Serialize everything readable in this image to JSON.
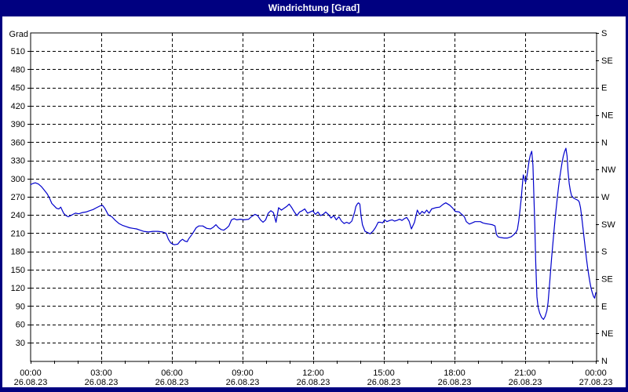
{
  "window": {
    "title": "Windrichtung [Grad]"
  },
  "colors": {
    "titlebar_bg": "#000080",
    "border": "#000080",
    "plot_bg": "#ffffff",
    "line": "#0000cc",
    "grid": "#000000",
    "text": "#000000"
  },
  "chart_data": {
    "type": "line",
    "title": "Windrichtung [Grad]",
    "ylabel": "Grad",
    "ylim": [
      0,
      540
    ],
    "xlim_hours": [
      0,
      24
    ],
    "grid": true,
    "legend_position": "none",
    "y_ticks_left": [
      30,
      60,
      90,
      120,
      150,
      180,
      210,
      240,
      270,
      300,
      330,
      360,
      390,
      420,
      450,
      480,
      510
    ],
    "y_ticks_right": [
      {
        "value": 540,
        "label": "S"
      },
      {
        "value": 495,
        "label": "SE"
      },
      {
        "value": 450,
        "label": "E"
      },
      {
        "value": 405,
        "label": "NE"
      },
      {
        "value": 360,
        "label": "N"
      },
      {
        "value": 315,
        "label": "NW"
      },
      {
        "value": 270,
        "label": "W"
      },
      {
        "value": 225,
        "label": "SW"
      },
      {
        "value": 180,
        "label": "S"
      },
      {
        "value": 135,
        "label": "SE"
      },
      {
        "value": 90,
        "label": "E"
      },
      {
        "value": 45,
        "label": "NE"
      },
      {
        "value": 0,
        "label": "N"
      }
    ],
    "x_ticks": [
      {
        "hours": 0,
        "time": "00:00",
        "date": "26.08.23"
      },
      {
        "hours": 3,
        "time": "03:00",
        "date": "26.08.23"
      },
      {
        "hours": 6,
        "time": "06:00",
        "date": "26.08.23"
      },
      {
        "hours": 9,
        "time": "09:00",
        "date": "26.08.23"
      },
      {
        "hours": 12,
        "time": "12:00",
        "date": "26.08.23"
      },
      {
        "hours": 15,
        "time": "15:00",
        "date": "26.08.23"
      },
      {
        "hours": 18,
        "time": "18:00",
        "date": "26.08.23"
      },
      {
        "hours": 21,
        "time": "21:00",
        "date": "26.08.23"
      },
      {
        "hours": 24,
        "time": "00:00",
        "date": "27.08.23"
      }
    ],
    "x_minor_tick_hours": 1,
    "series": [
      {
        "name": "Windrichtung",
        "unit": "Grad",
        "color": "#0000cc",
        "points": [
          [
            0,
            290
          ],
          [
            0.1,
            292
          ],
          [
            0.2,
            293
          ],
          [
            0.33,
            291
          ],
          [
            0.45,
            287
          ],
          [
            0.58,
            281
          ],
          [
            0.7,
            275
          ],
          [
            0.8,
            268
          ],
          [
            0.9,
            259
          ],
          [
            1.0,
            255
          ],
          [
            1.1,
            251
          ],
          [
            1.2,
            250
          ],
          [
            1.28,
            253
          ],
          [
            1.4,
            243
          ],
          [
            1.5,
            239
          ],
          [
            1.6,
            237
          ],
          [
            1.7,
            239
          ],
          [
            1.8,
            241
          ],
          [
            1.9,
            243
          ],
          [
            2.05,
            242
          ],
          [
            2.2,
            244
          ],
          [
            2.35,
            245
          ],
          [
            2.5,
            247
          ],
          [
            2.65,
            249
          ],
          [
            2.8,
            252
          ],
          [
            2.95,
            255
          ],
          [
            3.05,
            256
          ],
          [
            3.15,
            251
          ],
          [
            3.3,
            240
          ],
          [
            3.45,
            237
          ],
          [
            3.6,
            231
          ],
          [
            3.75,
            226
          ],
          [
            3.9,
            223
          ],
          [
            4.05,
            221
          ],
          [
            4.2,
            219
          ],
          [
            4.35,
            218
          ],
          [
            4.5,
            217
          ],
          [
            4.65,
            215
          ],
          [
            4.8,
            213
          ],
          [
            5.0,
            212
          ],
          [
            5.2,
            213
          ],
          [
            5.4,
            213
          ],
          [
            5.6,
            212
          ],
          [
            5.75,
            210
          ],
          [
            5.85,
            200
          ],
          [
            5.95,
            194
          ],
          [
            6.1,
            191
          ],
          [
            6.25,
            192
          ],
          [
            6.35,
            197
          ],
          [
            6.45,
            200
          ],
          [
            6.55,
            197
          ],
          [
            6.65,
            196
          ],
          [
            6.7,
            200
          ],
          [
            6.87,
            209
          ],
          [
            7.03,
            219
          ],
          [
            7.14,
            222
          ],
          [
            7.31,
            222
          ],
          [
            7.48,
            218
          ],
          [
            7.64,
            217
          ],
          [
            7.76,
            220
          ],
          [
            7.87,
            224
          ],
          [
            7.98,
            219
          ],
          [
            8.09,
            216
          ],
          [
            8.2,
            215
          ],
          [
            8.31,
            218
          ],
          [
            8.42,
            222
          ],
          [
            8.53,
            232
          ],
          [
            8.64,
            234
          ],
          [
            8.76,
            232
          ],
          [
            8.9,
            233
          ],
          [
            9.05,
            232
          ],
          [
            9.26,
            233
          ],
          [
            9.37,
            237
          ],
          [
            9.53,
            241
          ],
          [
            9.64,
            239
          ],
          [
            9.76,
            232
          ],
          [
            9.87,
            228
          ],
          [
            9.98,
            232
          ],
          [
            10.09,
            243
          ],
          [
            10.2,
            247
          ],
          [
            10.31,
            244
          ],
          [
            10.42,
            228
          ],
          [
            10.53,
            252
          ],
          [
            10.65,
            248
          ],
          [
            10.87,
            254
          ],
          [
            10.98,
            258
          ],
          [
            11.09,
            252
          ],
          [
            11.2,
            245
          ],
          [
            11.31,
            239
          ],
          [
            11.42,
            245
          ],
          [
            11.53,
            247
          ],
          [
            11.64,
            250
          ],
          [
            11.76,
            243
          ],
          [
            11.87,
            245
          ],
          [
            11.98,
            247
          ],
          [
            12.09,
            241
          ],
          [
            12.2,
            245
          ],
          [
            12.31,
            239
          ],
          [
            12.42,
            241
          ],
          [
            12.53,
            245
          ],
          [
            12.64,
            241
          ],
          [
            12.76,
            235
          ],
          [
            12.87,
            239
          ],
          [
            12.98,
            232
          ],
          [
            13.09,
            237
          ],
          [
            13.2,
            230
          ],
          [
            13.31,
            226
          ],
          [
            13.42,
            228
          ],
          [
            13.53,
            226
          ],
          [
            13.64,
            230
          ],
          [
            13.76,
            245
          ],
          [
            13.81,
            254
          ],
          [
            13.87,
            258
          ],
          [
            13.92,
            260
          ],
          [
            13.98,
            258
          ],
          [
            14.03,
            239
          ],
          [
            14.09,
            224
          ],
          [
            14.2,
            213
          ],
          [
            14.31,
            211
          ],
          [
            14.42,
            209
          ],
          [
            14.53,
            213
          ],
          [
            14.64,
            219
          ],
          [
            14.76,
            228
          ],
          [
            14.85,
            228
          ],
          [
            14.95,
            227
          ],
          [
            15.03,
            232
          ],
          [
            15.13,
            229
          ],
          [
            15.25,
            231
          ],
          [
            15.35,
            232
          ],
          [
            15.45,
            230
          ],
          [
            15.55,
            231
          ],
          [
            15.67,
            233
          ],
          [
            15.77,
            231
          ],
          [
            15.87,
            234
          ],
          [
            15.97,
            236
          ],
          [
            16.07,
            230
          ],
          [
            16.17,
            217
          ],
          [
            16.3,
            228
          ],
          [
            16.42,
            248
          ],
          [
            16.52,
            241
          ],
          [
            16.62,
            246
          ],
          [
            16.72,
            243
          ],
          [
            16.82,
            248
          ],
          [
            16.92,
            243
          ],
          [
            17.03,
            250
          ],
          [
            17.2,
            252
          ],
          [
            17.37,
            253
          ],
          [
            17.53,
            258
          ],
          [
            17.63,
            260
          ],
          [
            17.8,
            256
          ],
          [
            17.93,
            251
          ],
          [
            18.03,
            246
          ],
          [
            18.2,
            245
          ],
          [
            18.31,
            241
          ],
          [
            18.42,
            237
          ],
          [
            18.5,
            229
          ],
          [
            18.63,
            225
          ],
          [
            18.75,
            227
          ],
          [
            18.87,
            229
          ],
          [
            19.0,
            229
          ],
          [
            19.1,
            229
          ],
          [
            19.2,
            227
          ],
          [
            19.3,
            226
          ],
          [
            19.45,
            225
          ],
          [
            19.6,
            224
          ],
          [
            19.72,
            222
          ],
          [
            19.78,
            208
          ],
          [
            19.85,
            204
          ],
          [
            19.95,
            203
          ],
          [
            20.1,
            202
          ],
          [
            20.25,
            202
          ],
          [
            20.4,
            204
          ],
          [
            20.5,
            207
          ],
          [
            20.6,
            211
          ],
          [
            20.67,
            216
          ],
          [
            20.73,
            231
          ],
          [
            20.78,
            248
          ],
          [
            20.83,
            266
          ],
          [
            20.88,
            289
          ],
          [
            20.92,
            306
          ],
          [
            20.97,
            299
          ],
          [
            21.02,
            294
          ],
          [
            21.07,
            303
          ],
          [
            21.12,
            316
          ],
          [
            21.17,
            330
          ],
          [
            21.22,
            339
          ],
          [
            21.28,
            345
          ],
          [
            21.33,
            322
          ],
          [
            21.37,
            272
          ],
          [
            21.41,
            222
          ],
          [
            21.45,
            160
          ],
          [
            21.5,
            105
          ],
          [
            21.55,
            88
          ],
          [
            21.62,
            78
          ],
          [
            21.7,
            71
          ],
          [
            21.78,
            68
          ],
          [
            21.85,
            73
          ],
          [
            21.92,
            82
          ],
          [
            21.97,
            95
          ],
          [
            22.02,
            118
          ],
          [
            22.07,
            143
          ],
          [
            22.12,
            168
          ],
          [
            22.17,
            190
          ],
          [
            22.22,
            212
          ],
          [
            22.27,
            233
          ],
          [
            22.32,
            252
          ],
          [
            22.37,
            270
          ],
          [
            22.42,
            287
          ],
          [
            22.47,
            302
          ],
          [
            22.52,
            315
          ],
          [
            22.57,
            327
          ],
          [
            22.62,
            337
          ],
          [
            22.67,
            344
          ],
          [
            22.73,
            350
          ],
          [
            22.78,
            337
          ],
          [
            22.82,
            312
          ],
          [
            22.87,
            292
          ],
          [
            22.92,
            280
          ],
          [
            22.97,
            272
          ],
          [
            23.05,
            268
          ],
          [
            23.15,
            266
          ],
          [
            23.25,
            264
          ],
          [
            23.3,
            261
          ],
          [
            23.35,
            252
          ],
          [
            23.4,
            237
          ],
          [
            23.45,
            220
          ],
          [
            23.5,
            203
          ],
          [
            23.55,
            186
          ],
          [
            23.6,
            169
          ],
          [
            23.65,
            154
          ],
          [
            23.7,
            141
          ],
          [
            23.75,
            129
          ],
          [
            23.8,
            119
          ],
          [
            23.85,
            112
          ],
          [
            23.9,
            106
          ],
          [
            23.95,
            103
          ],
          [
            24.0,
            112
          ]
        ]
      }
    ]
  }
}
